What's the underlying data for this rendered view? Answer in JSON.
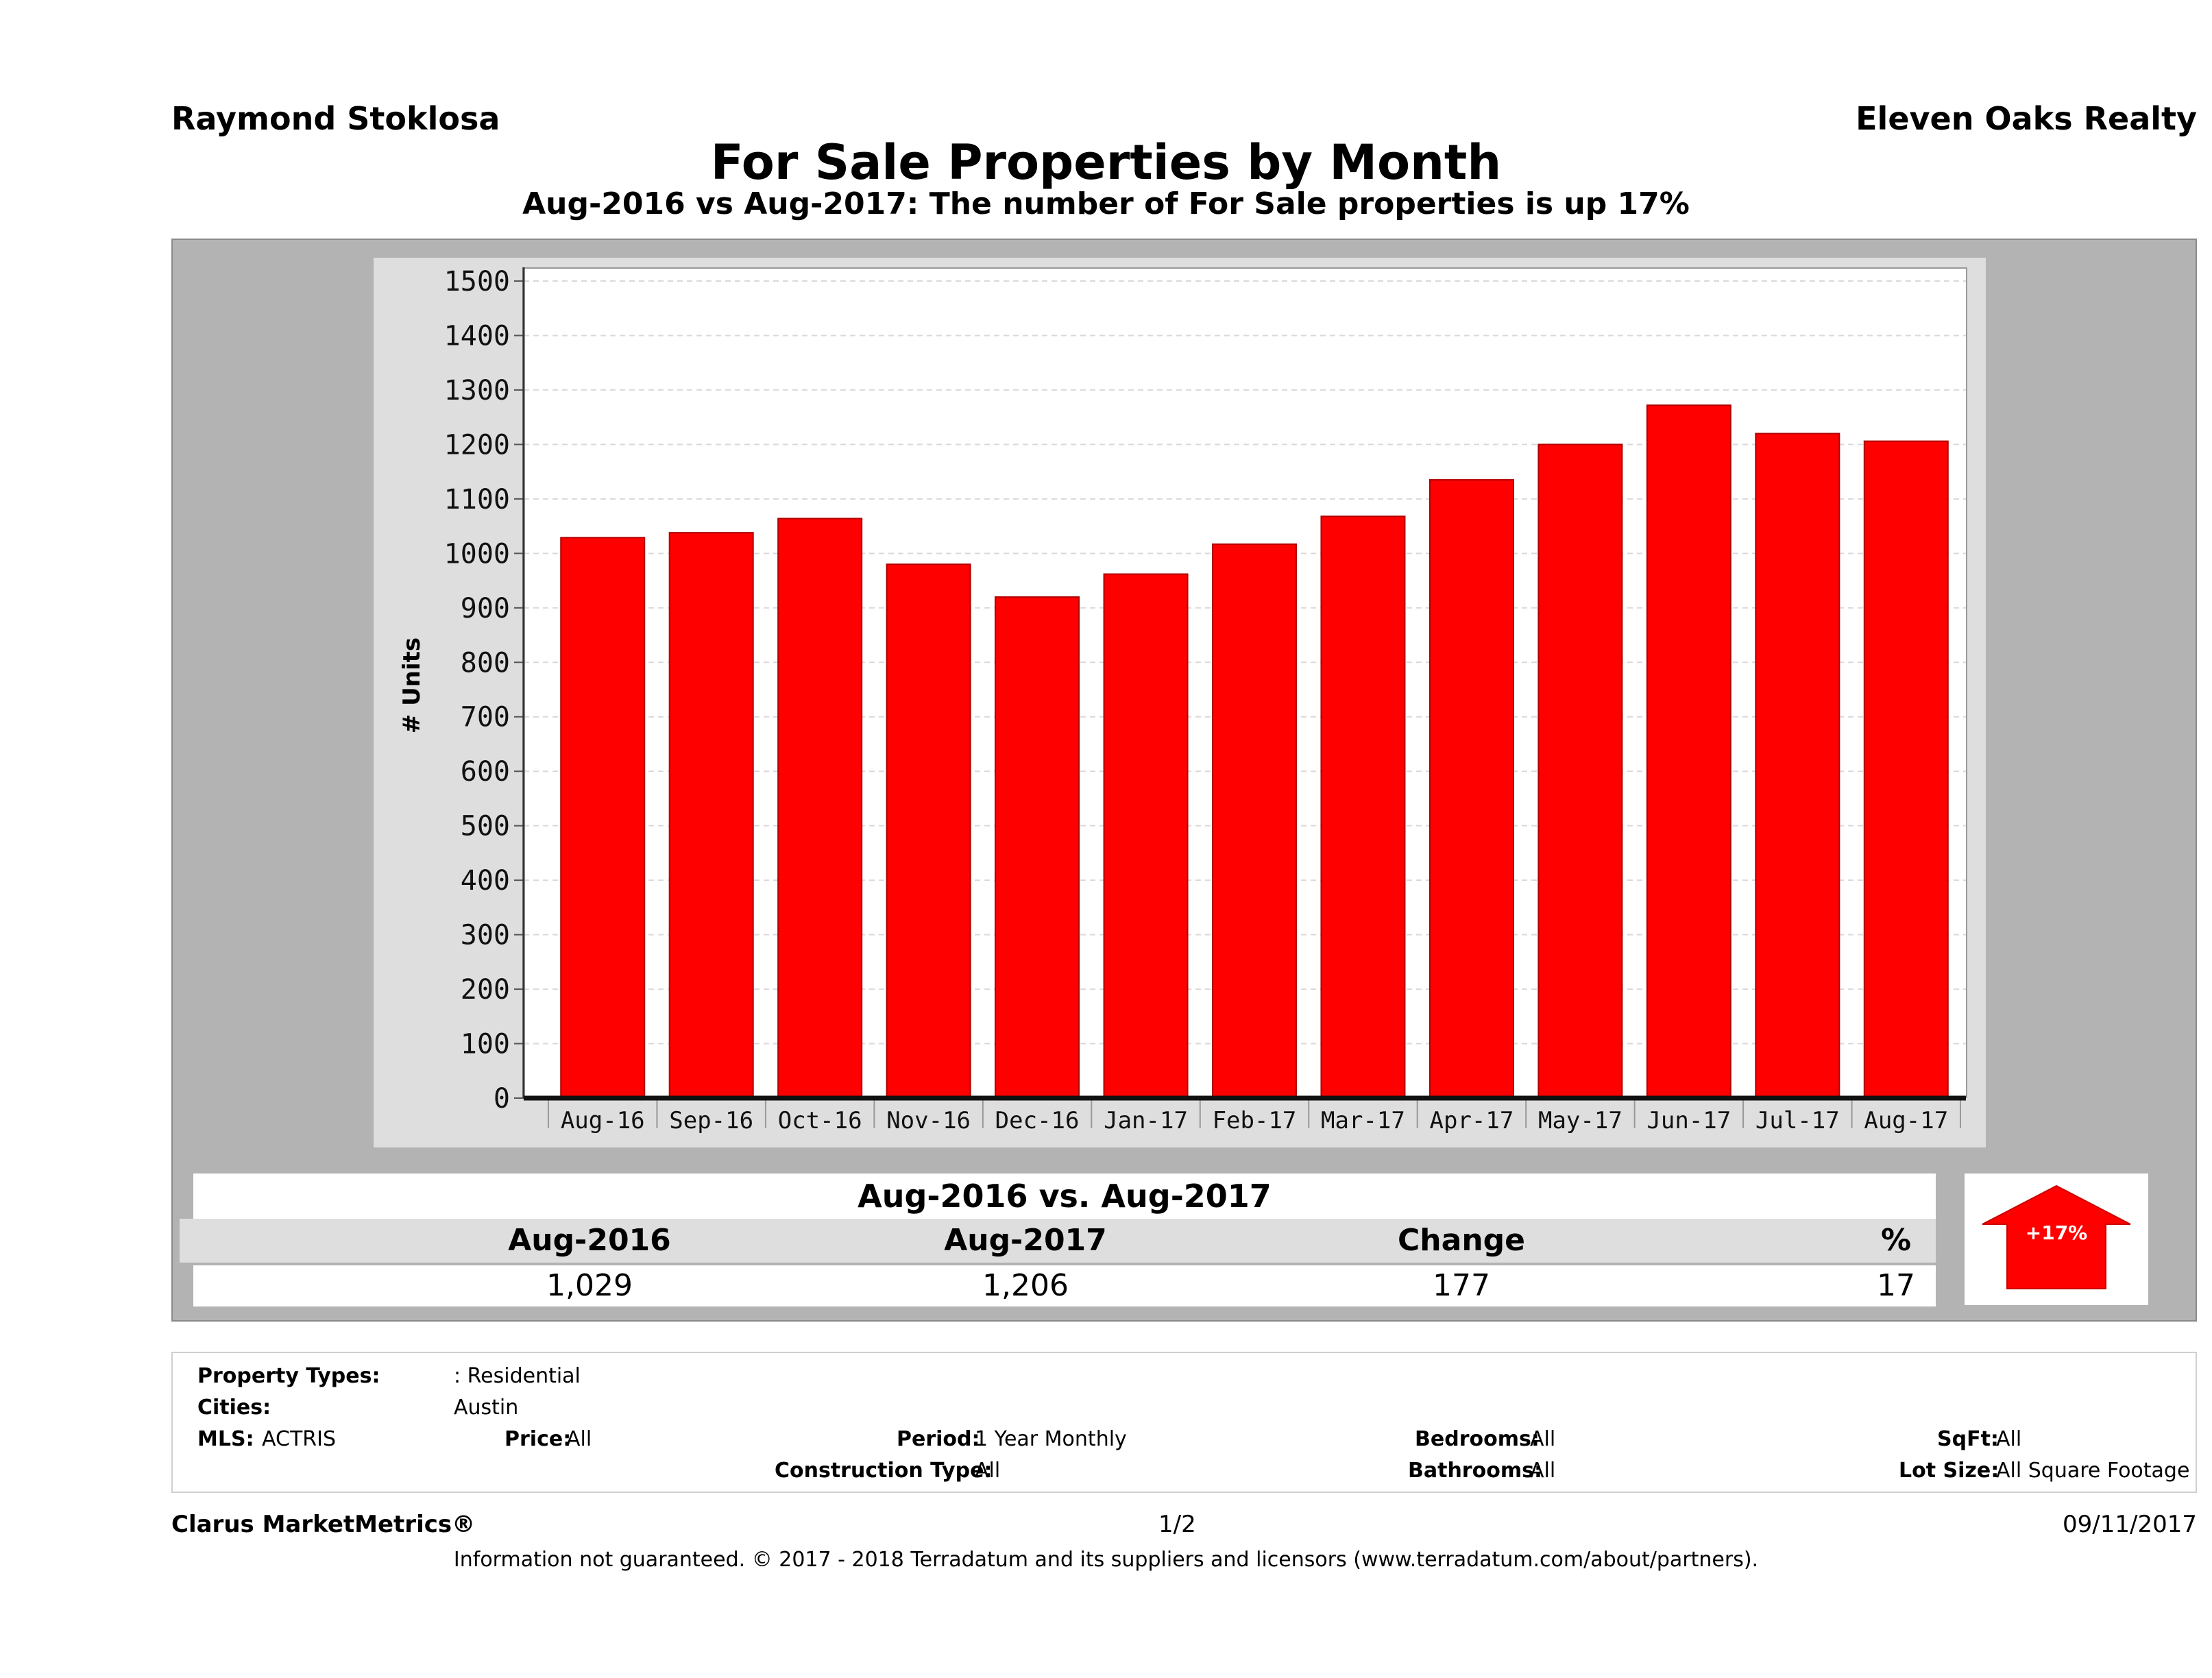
{
  "header": {
    "agent": "Raymond Stoklosa",
    "brokerage": "Eleven Oaks Realty",
    "title": "For Sale Properties by Month",
    "subtitle": "Aug-2016 vs Aug-2017: The number of For Sale  properties is up 17%"
  },
  "chart_data": {
    "type": "bar",
    "categories": [
      "Aug-16",
      "Sep-16",
      "Oct-16",
      "Nov-16",
      "Dec-16",
      "Jan-17",
      "Feb-17",
      "Mar-17",
      "Apr-17",
      "May-17",
      "Jun-17",
      "Jul-17",
      "Aug-17"
    ],
    "values": [
      1029,
      1038,
      1064,
      980,
      920,
      962,
      1017,
      1068,
      1135,
      1200,
      1272,
      1220,
      1206
    ],
    "ylabel": "# Units",
    "ylim": [
      0,
      1500
    ],
    "yticks": [
      0,
      100,
      200,
      300,
      400,
      500,
      600,
      700,
      800,
      900,
      1000,
      1100,
      1200,
      1300,
      1400,
      1500
    ],
    "bar_color": "#ff0000",
    "grid": true
  },
  "comparison": {
    "title": "Aug-2016 vs. Aug-2017",
    "headers": [
      "Aug-2016",
      "Aug-2017",
      "Change",
      "%"
    ],
    "values": [
      "1,029",
      "1,206",
      "177",
      "17"
    ],
    "badge": "+17%",
    "badge_color": "#ff0000"
  },
  "filters": {
    "property_types_label": "Property Types:",
    "property_types_value": ": Residential",
    "cities_label": "Cities:",
    "cities_value": "Austin",
    "mls_label": "MLS:",
    "mls_value": "ACTRIS",
    "price_label": "Price:",
    "price_value": "All",
    "period_label": "Period:",
    "period_value": "1 Year Monthly",
    "construction_label": "Construction Type:",
    "construction_value": "All",
    "bedrooms_label": "Bedrooms:",
    "bedrooms_value": "All",
    "bathrooms_label": "Bathrooms:",
    "bathrooms_value": "All",
    "sqft_label": "SqFt:",
    "sqft_value": "All",
    "lotsize_label": "Lot Size:",
    "lotsize_value": "All Square Footage"
  },
  "footer": {
    "product": "Clarus MarketMetrics®",
    "page": "1/2",
    "date": "09/11/2017",
    "disclaimer": "Information not guaranteed. © 2017 - 2018 Terradatum and its suppliers and licensors (www.terradatum.com/about/partners)."
  }
}
